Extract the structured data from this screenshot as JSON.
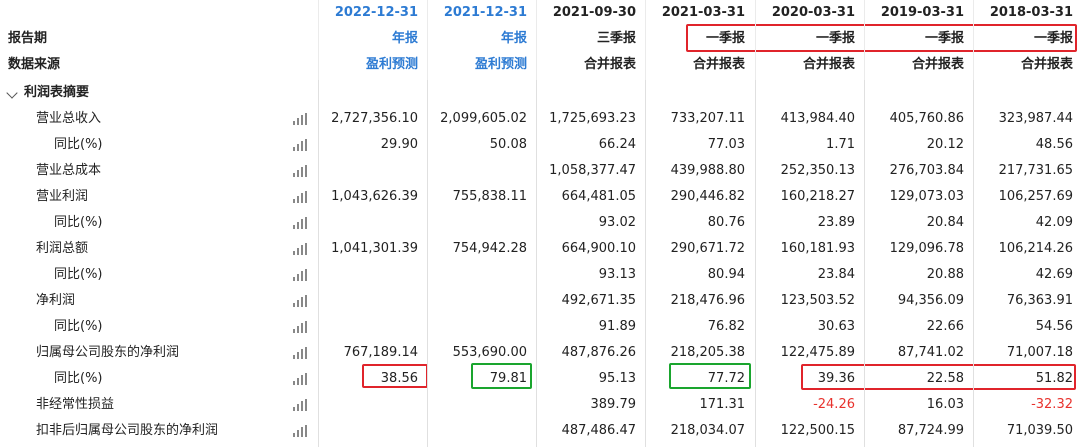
{
  "header": {
    "date_row": [
      "2022-12-31",
      "2021-12-31",
      "2021-09-30",
      "2021-03-31",
      "2020-03-31",
      "2019-03-31",
      "2018-03-31"
    ],
    "report_period_label": "报告期",
    "report_period": [
      "年报",
      "年报",
      "三季报",
      "一季报",
      "一季报",
      "一季报",
      "一季报"
    ],
    "data_source_label": "数据来源",
    "data_source": [
      "盈利预测",
      "盈利预测",
      "合并报表",
      "合并报表",
      "合并报表",
      "合并报表",
      "合并报表"
    ]
  },
  "section": {
    "title": "利润表摘要",
    "icon": "chevron-down-icon"
  },
  "rows": [
    {
      "label": "营业总收入",
      "indent": 1,
      "values": [
        "2,727,356.10",
        "2,099,605.02",
        "1,725,693.23",
        "733,207.11",
        "413,984.40",
        "405,760.86",
        "323,987.44"
      ]
    },
    {
      "label": "同比(%)",
      "indent": 2,
      "values": [
        "29.90",
        "50.08",
        "66.24",
        "77.03",
        "1.71",
        "20.12",
        "48.56"
      ]
    },
    {
      "label": "营业总成本",
      "indent": 1,
      "values": [
        "",
        "",
        "1,058,377.47",
        "439,988.80",
        "252,350.13",
        "276,703.84",
        "217,731.65"
      ]
    },
    {
      "label": "营业利润",
      "indent": 1,
      "values": [
        "1,043,626.39",
        "755,838.11",
        "664,481.05",
        "290,446.82",
        "160,218.27",
        "129,073.03",
        "106,257.69"
      ]
    },
    {
      "label": "同比(%)",
      "indent": 2,
      "values": [
        "",
        "",
        "93.02",
        "80.76",
        "23.89",
        "20.84",
        "42.09"
      ]
    },
    {
      "label": "利润总额",
      "indent": 1,
      "values": [
        "1,041,301.39",
        "754,942.28",
        "664,900.10",
        "290,671.72",
        "160,181.93",
        "129,096.78",
        "106,214.26"
      ]
    },
    {
      "label": "同比(%)",
      "indent": 2,
      "values": [
        "",
        "",
        "93.13",
        "80.94",
        "23.84",
        "20.88",
        "42.69"
      ]
    },
    {
      "label": "净利润",
      "indent": 1,
      "values": [
        "",
        "",
        "492,671.35",
        "218,476.96",
        "123,503.52",
        "94,356.09",
        "76,363.91"
      ]
    },
    {
      "label": "同比(%)",
      "indent": 2,
      "values": [
        "",
        "",
        "91.89",
        "76.82",
        "30.63",
        "22.66",
        "54.56"
      ]
    },
    {
      "label": "归属母公司股东的净利润",
      "indent": 1,
      "values": [
        "767,189.14",
        "553,690.00",
        "487,876.26",
        "218,205.38",
        "122,475.89",
        "87,741.02",
        "71,007.18"
      ]
    },
    {
      "label": "同比(%)",
      "indent": 2,
      "values": [
        "38.56",
        "79.81",
        "95.13",
        "77.72",
        "39.36",
        "22.58",
        "51.82"
      ]
    },
    {
      "label": "非经常性损益",
      "indent": 1,
      "values": [
        "",
        "",
        "389.79",
        "171.31",
        "-24.26",
        "16.03",
        "-32.32"
      ]
    },
    {
      "label": "扣非后归属母公司股东的净利润",
      "indent": 1,
      "values": [
        "",
        "",
        "487,486.47",
        "218,034.07",
        "122,500.15",
        "87,724.99",
        "71,039.50"
      ]
    }
  ],
  "colors": {
    "forecast_blue": "#2d7bd3",
    "negative_red": "#e8322d",
    "highlight_red": "#e0242b",
    "highlight_green": "#1aa52e",
    "row_shade": "#f0f0f0"
  },
  "row_icon": "bar-chart-icon"
}
